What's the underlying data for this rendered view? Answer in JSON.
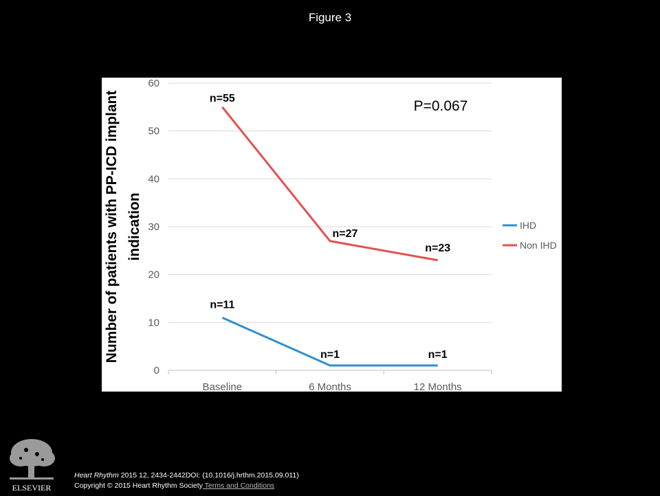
{
  "header": {
    "figure_title": "Figure 3"
  },
  "chart_data": {
    "type": "line",
    "title": "",
    "xlabel": "",
    "ylabel": "Number of patients with PP-ICD implant indication",
    "ylabel_lines": [
      "Number of patients with PP-ICD implant",
      "indication"
    ],
    "categories": [
      "Baseline",
      "6 Months",
      "12 Months"
    ],
    "ylim": [
      0,
      60
    ],
    "yticks": [
      0,
      10,
      20,
      30,
      40,
      50,
      60
    ],
    "grid": true,
    "legend_position": "right",
    "series": [
      {
        "name": "IHD",
        "values": [
          11,
          1,
          1
        ],
        "labels": [
          "n=11",
          "n=1",
          "n=1"
        ],
        "color": "#2e8fcf"
      },
      {
        "name": "Non IHD",
        "values": [
          55,
          27,
          23
        ],
        "labels": [
          "n=55",
          "n=27",
          "n=23"
        ],
        "color": "#e4514f"
      }
    ],
    "annotation": "P=0.067"
  },
  "footer": {
    "journal": "Heart Rhythm",
    "citation_rest": " 2015 12, 2434-2442DOI: (10.1016/j.hrthm.2015.09.011)",
    "copyright": "Copyright © 2015 Heart Rhythm Society",
    "terms_link": " Terms and Conditions"
  },
  "logo": {
    "text": "ELSEVIER",
    "icon": "tree-icon"
  }
}
